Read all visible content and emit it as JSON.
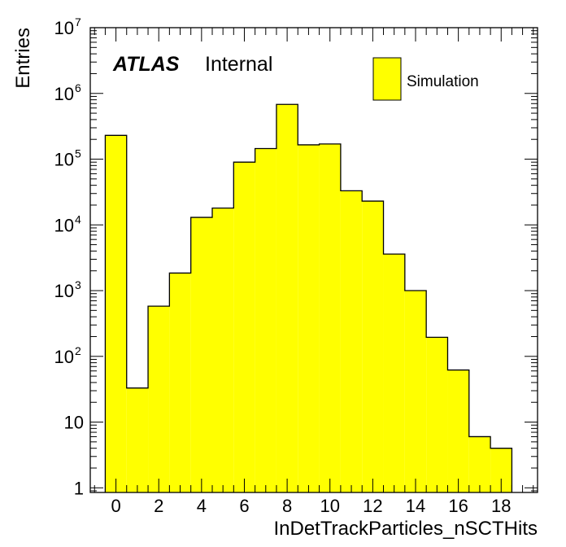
{
  "chart_data": {
    "type": "bar",
    "style": "histogram",
    "x_bin_low_edges": [
      -0.5,
      0.5,
      1.5,
      2.5,
      3.5,
      4.5,
      5.5,
      6.5,
      7.5,
      8.5,
      9.5,
      10.5,
      11.5,
      12.5,
      13.5,
      14.5,
      15.5,
      16.5,
      17.5
    ],
    "x_bin_width": 1,
    "values": [
      230000,
      33,
      580,
      1850,
      13000,
      18000,
      90000,
      145000,
      680000,
      165000,
      170000,
      33000,
      23000,
      3600,
      1000,
      195,
      62,
      6,
      4
    ],
    "xlabel": "InDetTrackParticles_nSCTHits",
    "ylabel": "Entries",
    "xlim": [
      -1.2,
      19.7
    ],
    "ylim": [
      0.85,
      10000000
    ],
    "yscale": "log",
    "x_ticks": [
      "0",
      "2",
      "4",
      "6",
      "8",
      "10",
      "12",
      "14",
      "16",
      "18"
    ],
    "y_ticks": [
      {
        "base": "1",
        "exp": ""
      },
      {
        "base": "10",
        "exp": ""
      },
      {
        "base": "10",
        "exp": "2"
      },
      {
        "base": "10",
        "exp": "3"
      },
      {
        "base": "10",
        "exp": "4"
      },
      {
        "base": "10",
        "exp": "5"
      },
      {
        "base": "10",
        "exp": "6"
      },
      {
        "base": "10",
        "exp": "7"
      }
    ],
    "atlas_label": "ATLAS",
    "status_label": "Internal",
    "legend": [
      {
        "label": "Simulation",
        "color": "#ffff00"
      }
    ],
    "legend_position": "top-right",
    "fill_color": "#ffff00",
    "line_color": "#000000",
    "grid": false
  }
}
